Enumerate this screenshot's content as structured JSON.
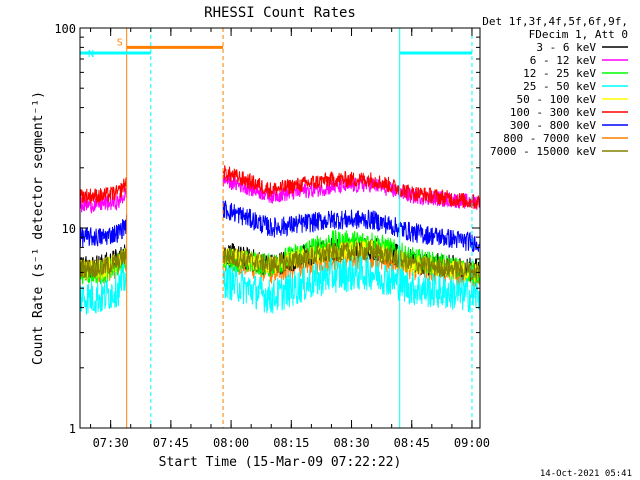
{
  "chart_data": {
    "type": "line",
    "title": "RHESSI Count Rates",
    "xlabel": "Start Time (15-Mar-09 07:22:22)",
    "ylabel": "Count Rate (s⁻¹ detector segment⁻¹)",
    "yscale": "log",
    "ylim": [
      1,
      100
    ],
    "xlim": [
      "07:22:22",
      "09:02:00"
    ],
    "y_ticks": [
      "1",
      "10",
      "100"
    ],
    "x_ticks": [
      "07:30",
      "07:45",
      "08:00",
      "08:15",
      "08:30",
      "08:45",
      "09:00"
    ],
    "grid": false,
    "legend_position": "right",
    "legend_header": [
      "Det 1f,3f,4f,5f,6f,9f,",
      "FDecim 1, Att 0"
    ],
    "timestamp": "14-Oct-2021 05:41",
    "gap": [
      "07:34:00",
      "07:58:00"
    ],
    "series": [
      {
        "name": "3 - 6 keV",
        "color": "#000000",
        "x": [
          "07:22:22",
          "07:28:00",
          "07:32:00",
          "07:34:00",
          "07:58:00",
          "08:10:00",
          "08:25:00",
          "08:35:00",
          "08:45:00",
          "09:00:00"
        ],
        "values": [
          6.5,
          6.5,
          7.0,
          7.5,
          7.5,
          6.5,
          7.8,
          8.0,
          6.8,
          6.2
        ]
      },
      {
        "name": "6 - 12 keV",
        "color": "#ff00ff",
        "x": [
          "07:22:22",
          "07:28:00",
          "07:32:00",
          "07:34:00",
          "07:58:00",
          "08:10:00",
          "08:25:00",
          "08:35:00",
          "08:45:00",
          "09:00:00"
        ],
        "values": [
          13.0,
          13.2,
          13.5,
          15.0,
          17.5,
          14.5,
          16.0,
          16.5,
          14.5,
          13.5
        ]
      },
      {
        "name": "12 - 25 keV",
        "color": "#00ff00",
        "x": [
          "07:22:22",
          "07:28:00",
          "07:32:00",
          "07:34:00",
          "07:58:00",
          "08:10:00",
          "08:25:00",
          "08:35:00",
          "08:45:00",
          "09:00:00"
        ],
        "values": [
          6.0,
          6.0,
          6.5,
          7.0,
          7.0,
          6.5,
          8.5,
          8.5,
          7.0,
          6.0
        ]
      },
      {
        "name": "25 - 50 keV",
        "color": "#00ffff",
        "x": [
          "07:22:22",
          "07:28:00",
          "07:32:00",
          "07:34:00",
          "07:58:00",
          "08:10:00",
          "08:25:00",
          "08:35:00",
          "08:45:00",
          "09:00:00"
        ],
        "values": [
          4.5,
          4.5,
          5.0,
          5.8,
          5.5,
          4.5,
          5.8,
          6.0,
          5.0,
          4.6
        ]
      },
      {
        "name": "50 - 100 keV",
        "color": "#ffff00",
        "x": [
          "07:22:22",
          "07:28:00",
          "07:32:00",
          "07:34:00",
          "07:58:00",
          "08:10:00",
          "08:25:00",
          "08:35:00",
          "08:45:00",
          "09:00:00"
        ],
        "values": [
          6.2,
          6.2,
          6.8,
          7.2,
          7.2,
          6.5,
          7.6,
          7.8,
          6.6,
          6.0
        ]
      },
      {
        "name": "100 - 300 keV",
        "color": "#ff0000",
        "x": [
          "07:22:22",
          "07:28:00",
          "07:32:00",
          "07:34:00",
          "07:58:00",
          "08:10:00",
          "08:25:00",
          "08:35:00",
          "08:45:00",
          "09:00:00"
        ],
        "values": [
          14.5,
          14.5,
          15.0,
          17.0,
          19.0,
          15.5,
          17.5,
          17.5,
          15.0,
          13.5
        ]
      },
      {
        "name": "300 - 800 keV",
        "color": "#0000ff",
        "x": [
          "07:22:22",
          "07:28:00",
          "07:32:00",
          "07:34:00",
          "07:58:00",
          "08:10:00",
          "08:25:00",
          "08:35:00",
          "08:45:00",
          "09:00:00"
        ],
        "values": [
          9.0,
          9.0,
          9.5,
          10.5,
          12.5,
          10.0,
          11.0,
          11.0,
          9.5,
          8.5
        ]
      },
      {
        "name": "800 - 7000 keV",
        "color": "#ff8000",
        "x": [
          "07:22:22",
          "07:28:00",
          "07:32:00",
          "07:34:00",
          "07:58:00",
          "08:10:00",
          "08:25:00",
          "08:35:00",
          "08:45:00",
          "09:00:00"
        ],
        "values": [
          6.0,
          6.0,
          6.5,
          7.0,
          7.0,
          6.0,
          7.0,
          7.2,
          6.3,
          5.8
        ]
      },
      {
        "name": "7000 - 15000 keV",
        "color": "#808000",
        "x": [
          "07:22:22",
          "07:28:00",
          "07:32:00",
          "07:34:00",
          "07:58:00",
          "08:10:00",
          "08:25:00",
          "08:35:00",
          "08:45:00",
          "09:00:00"
        ],
        "values": [
          6.3,
          6.3,
          6.8,
          7.2,
          7.3,
          6.5,
          7.5,
          7.7,
          6.6,
          6.1
        ]
      }
    ],
    "annotations": [
      {
        "label": "S",
        "color": "#ff8000",
        "start": "07:34:00",
        "end": "07:58:00",
        "level": 80
      },
      {
        "label": "N",
        "color": "#00ffff",
        "start": "07:22:22",
        "end": "07:40:00",
        "level": 75
      },
      {
        "label": "",
        "color": "#00ffff",
        "start": "08:42:00",
        "end": "09:00:00",
        "level": 75
      }
    ]
  }
}
